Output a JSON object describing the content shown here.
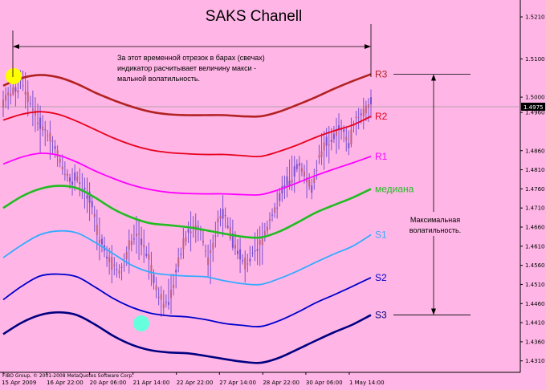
{
  "chart_data": {
    "type": "line",
    "title": "SAKS   Chanell",
    "copyright": "FIBO Group, © 2001-2008 MetaQuotes Software Corp.",
    "price_label": "1.4975",
    "ylim": [
      1.428,
      1.525
    ],
    "x_range": [
      0,
      100
    ],
    "y_ticks": [
      "1.5210",
      "1.5100",
      "1.5000",
      "1.4960",
      "1.4860",
      "1.4810",
      "1.4760",
      "1.4710",
      "1.4660",
      "1.4610",
      "1.4560",
      "1.4510",
      "1.4460",
      "1.4410",
      "1.4360",
      "1.4310"
    ],
    "y_tick_values": [
      1.521,
      1.51,
      1.5,
      1.496,
      1.486,
      1.481,
      1.476,
      1.471,
      1.466,
      1.461,
      1.456,
      1.451,
      1.446,
      1.441,
      1.436,
      1.431
    ],
    "x_ticks": [
      "15 Apr 2009",
      "16 Apr 22:00",
      "20 Apr 06:00",
      "21 Apr 14:00",
      "22 Apr 22:00",
      "27 Apr 14:00",
      "28 Apr 22:00",
      "30 Apr 06:00",
      "1 May 14:00"
    ],
    "x_tick_values": [
      0,
      11.8,
      23.5,
      35.3,
      47.1,
      58.8,
      70.6,
      82.3,
      94.1
    ],
    "colors": {
      "background": "#ffb6e6",
      "R3": "#b22222",
      "R2": "#e8001c",
      "R1": "#ff00ff",
      "median": "#22bb22",
      "S1": "#33aaff",
      "S2": "#0000cc",
      "S3": "#000080",
      "candles": "#7a4fd0",
      "highlight_top": "#ffff00",
      "highlight_bottom": "#66ffdd"
    },
    "x": [
      0,
      5,
      10,
      15,
      20,
      25,
      30,
      35,
      40,
      45,
      50,
      55,
      60,
      65,
      70,
      75,
      80,
      85,
      90,
      95,
      100
    ],
    "series": [
      {
        "name": "R3",
        "label": "R3",
        "values": [
          1.503,
          1.505,
          1.5058,
          1.5052,
          1.5035,
          1.5012,
          1.4992,
          1.4975,
          1.4962,
          1.4955,
          1.4953,
          1.4953,
          1.4953,
          1.495,
          1.495,
          1.4962,
          1.498,
          1.5,
          1.5022,
          1.5042,
          1.506
        ]
      },
      {
        "name": "R2",
        "label": "R2",
        "values": [
          1.494,
          1.4955,
          1.4962,
          1.4955,
          1.4937,
          1.4915,
          1.4893,
          1.4875,
          1.4862,
          1.4855,
          1.4852,
          1.485,
          1.485,
          1.4847,
          1.4845,
          1.4858,
          1.4875,
          1.4895,
          1.4912,
          1.4927,
          1.495
        ]
      },
      {
        "name": "R1",
        "label": "R1",
        "values": [
          1.4825,
          1.4843,
          1.4853,
          1.4848,
          1.483,
          1.4807,
          1.4787,
          1.477,
          1.4758,
          1.4751,
          1.4748,
          1.4747,
          1.4747,
          1.4745,
          1.4745,
          1.4758,
          1.4776,
          1.4795,
          1.4812,
          1.4828,
          1.4845
        ]
      },
      {
        "name": "median",
        "label": "медиана",
        "values": [
          1.471,
          1.474,
          1.476,
          1.4768,
          1.4762,
          1.4737,
          1.4707,
          1.4685,
          1.467,
          1.4665,
          1.466,
          1.4652,
          1.4643,
          1.4635,
          1.4633,
          1.4648,
          1.4672,
          1.4698,
          1.4718,
          1.4737,
          1.476
        ]
      },
      {
        "name": "S1",
        "label": "S1",
        "values": [
          1.458,
          1.4613,
          1.464,
          1.465,
          1.4645,
          1.462,
          1.459,
          1.456,
          1.4542,
          1.4535,
          1.4532,
          1.453,
          1.452,
          1.4512,
          1.451,
          1.4525,
          1.4545,
          1.4568,
          1.459,
          1.461,
          1.464
        ]
      },
      {
        "name": "S2",
        "label": "S2",
        "values": [
          1.447,
          1.4505,
          1.4532,
          1.4537,
          1.453,
          1.4503,
          1.4473,
          1.445,
          1.4435,
          1.4428,
          1.4425,
          1.4418,
          1.4408,
          1.4403,
          1.44,
          1.4415,
          1.4437,
          1.4462,
          1.4483,
          1.4505,
          1.4528
        ]
      },
      {
        "name": "S3",
        "label": "S3",
        "values": [
          1.438,
          1.441,
          1.443,
          1.4437,
          1.443,
          1.4405,
          1.4375,
          1.4352,
          1.4338,
          1.4332,
          1.433,
          1.4323,
          1.4315,
          1.4308,
          1.4305,
          1.4318,
          1.434,
          1.4363,
          1.4385,
          1.4405,
          1.443
        ]
      }
    ],
    "price_path": {
      "x": [
        0,
        2,
        4,
        5,
        6,
        8,
        10,
        12,
        14,
        16,
        18,
        20,
        22,
        24,
        26,
        28,
        30,
        32,
        34,
        36,
        38,
        40,
        42,
        44,
        46,
        48,
        50,
        52,
        54,
        56,
        58,
        60,
        62,
        64,
        66,
        68,
        70,
        72,
        74,
        76,
        78,
        80,
        82,
        84,
        86,
        88,
        90,
        92,
        94,
        96,
        98,
        100
      ],
      "values": [
        1.4985,
        1.501,
        1.503,
        1.5055,
        1.502,
        1.497,
        1.493,
        1.49,
        1.487,
        1.482,
        1.478,
        1.479,
        1.476,
        1.472,
        1.464,
        1.459,
        1.456,
        1.454,
        1.46,
        1.465,
        1.462,
        1.456,
        1.448,
        1.446,
        1.45,
        1.458,
        1.464,
        1.467,
        1.464,
        1.456,
        1.466,
        1.47,
        1.464,
        1.459,
        1.456,
        1.46,
        1.462,
        1.466,
        1.471,
        1.476,
        1.479,
        1.482,
        1.48,
        1.476,
        1.485,
        1.488,
        1.49,
        1.492,
        1.488,
        1.494,
        1.496,
        1.498
      ]
    },
    "annotations": {
      "top_note": "За этот временной отрезок в барах (свечах) индикатор расчитывает величину макси - мальной волатильности.",
      "top_note_lines": [
        "За этот временной отрезок в барах (свечах)",
        "индикатор расчитывает величину макси -",
        "мальной волатильность."
      ],
      "right_note_lines": [
        "Максимальная",
        "волатильность."
      ]
    }
  }
}
